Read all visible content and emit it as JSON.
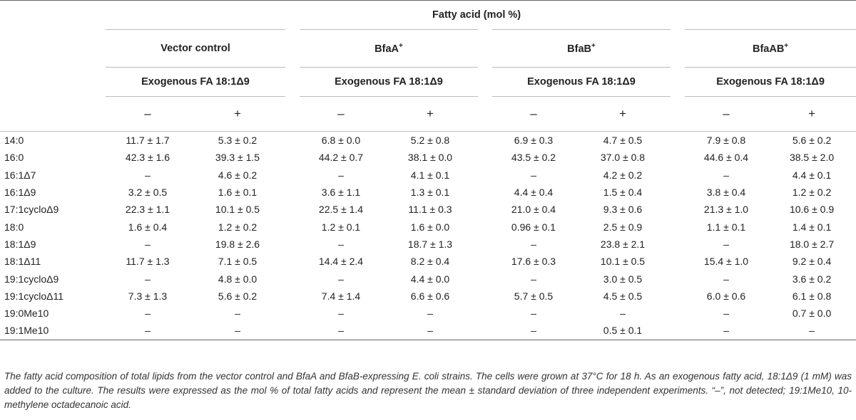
{
  "header": {
    "fatty_acid_title": "Fatty acid (mol %)",
    "strains": [
      {
        "name": "Vector control",
        "sup": ""
      },
      {
        "name": "BfaA",
        "sup": "+"
      },
      {
        "name": "BfaB",
        "sup": "+"
      },
      {
        "name": "BfaAB",
        "sup": "+"
      }
    ],
    "exogenous_label": "Exogenous FA 18:1Δ9",
    "minus": "–",
    "plus": "+"
  },
  "rows": [
    {
      "label": "14:0",
      "values": [
        "11.7 ± 1.7",
        "5.3 ± 0.2",
        "6.8 ± 0.0",
        "5.2 ± 0.8",
        "6.9 ± 0.3",
        "4.7 ± 0.5",
        "7.9 ± 0.8",
        "5.6 ± 0.2"
      ]
    },
    {
      "label": "16:0",
      "values": [
        "42.3 ± 1.6",
        "39.3 ± 1.5",
        "44.2 ± 0.7",
        "38.1 ± 0.0",
        "43.5 ± 0.2",
        "37.0 ± 0.8",
        "44.6 ± 0.4",
        "38.5 ± 2.0"
      ]
    },
    {
      "label": "16:1Δ7",
      "values": [
        "–",
        "4.6 ± 0.2",
        "–",
        "4.1 ± 0.1",
        "–",
        "4.2 ± 0.2",
        "–",
        "4.4 ± 0.1"
      ]
    },
    {
      "label": "16:1Δ9",
      "values": [
        "3.2 ± 0.5",
        "1.6 ± 0.1",
        "3.6 ± 1.1",
        "1.3 ± 0.1",
        "4.4 ± 0.4",
        "1.5 ± 0.4",
        "3.8 ± 0.4",
        "1.2 ± 0.2"
      ]
    },
    {
      "label": "17:1cycloΔ9",
      "values": [
        "22.3 ± 1.1",
        "10.1 ± 0.5",
        "22.5 ± 1.4",
        "11.1 ± 0.3",
        "21.0 ± 0.4",
        "9.3 ± 0.6",
        "21.3 ± 1.0",
        "10.6 ± 0.9"
      ]
    },
    {
      "label": "18:0",
      "values": [
        "1.6 ± 0.4",
        "1.2 ± 0.2",
        "1.2 ± 0.1",
        "1.6 ± 0.0",
        "0.96 ± 0.1",
        "2.5 ± 0.9",
        "1.1 ± 0.1",
        "1.4 ± 0.1"
      ]
    },
    {
      "label": "18:1Δ9",
      "values": [
        "–",
        "19.8 ± 2.6",
        "–",
        "18.7 ± 1.3",
        "–",
        "23.8 ± 2.1",
        "–",
        "18.0 ± 2.7"
      ]
    },
    {
      "label": "18:1Δ11",
      "values": [
        "11.7 ± 1.3",
        "7.1 ± 0.5",
        "14.4 ± 2.4",
        "8.2 ± 0.4",
        "17.6 ± 0.3",
        "10.1 ± 0.5",
        "15.4 ± 1.0",
        "9.2 ± 0.4"
      ]
    },
    {
      "label": "19:1cycloΔ9",
      "values": [
        "–",
        "4.8 ± 0.0",
        "–",
        "4.4 ± 0.0",
        "–",
        "3.0 ± 0.5",
        "–",
        "3.6 ± 0.2"
      ]
    },
    {
      "label": "19:1cycloΔ11",
      "values": [
        "7.3 ± 1.3",
        "5.6 ± 0.2",
        "7.4 ± 1.4",
        "6.6 ± 0.6",
        "5.7 ± 0.5",
        "4.5 ± 0.5",
        "6.0 ± 0.6",
        "6.1 ± 0.8"
      ]
    },
    {
      "label": "19:0Me10",
      "values": [
        "–",
        "–",
        "–",
        "–",
        "–",
        "–",
        "–",
        "0.7 ± 0.0"
      ]
    },
    {
      "label": "19:1Me10",
      "values": [
        "–",
        "–",
        "–",
        "–",
        "–",
        "0.5 ± 0.1",
        "–",
        "–"
      ]
    }
  ],
  "footnote": "The fatty acid composition of total lipids from the vector control and BfaA and BfaB-expressing E. coli strains. The cells were grown at 37°C for 18 h. As an exogenous fatty acid, 18:1Δ9 (1 mM) was added to the culture. The results were expressed as the mol % of total fatty acids and represent the mean ± standard deviation of three independent experiments. “–”, not detected; 19:1Me10, 10-methylene octadecanoic acid."
}
